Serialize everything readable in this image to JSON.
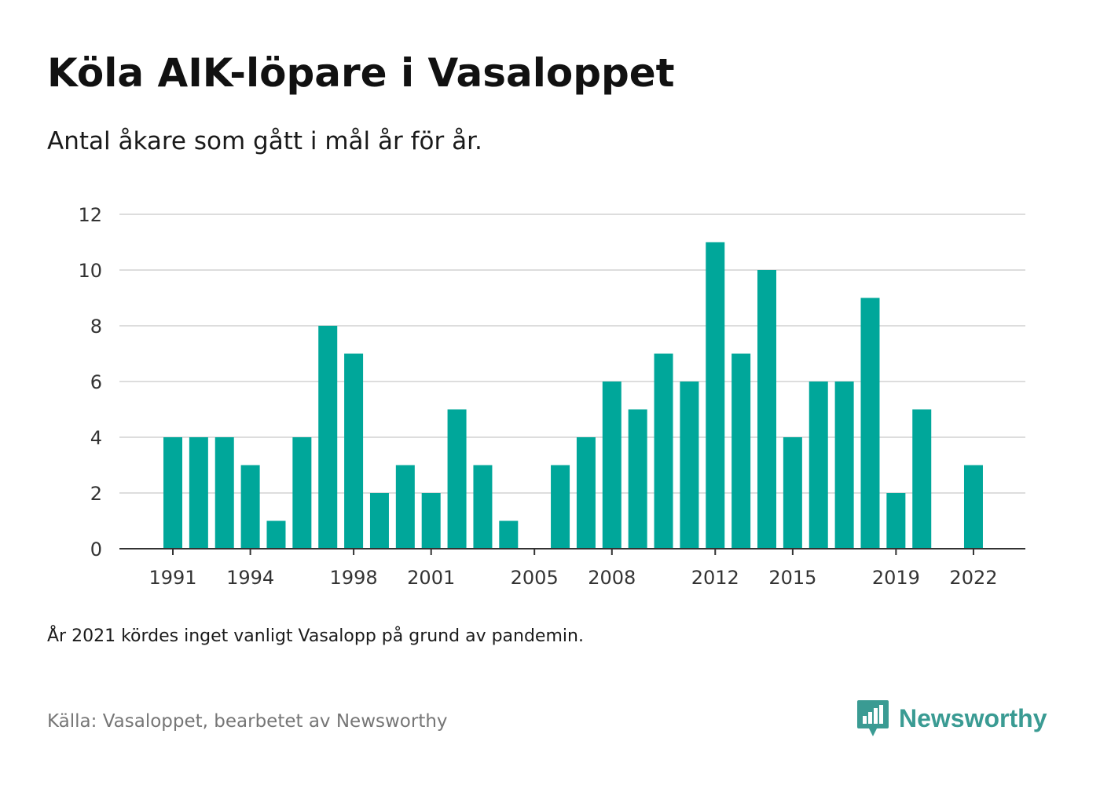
{
  "title": "Köla AIK-löpare i Vasaloppet",
  "subtitle": "Antal åkare som gått i mål år för år.",
  "note": "År 2021 kördes inget vanligt Vasalopp på grund av pandemin.",
  "source": "Källa: Vasaloppet, bearbetet av Newsworthy",
  "logo": {
    "text": "Newsworthy",
    "icon": "bar-chart-speech-bubble-icon",
    "color": "#3a9b93"
  },
  "colors": {
    "bar": "#00a79a",
    "grid": "#dddddd",
    "axis": "#333333"
  },
  "chart_data": {
    "type": "bar",
    "x": [
      1991,
      1992,
      1993,
      1994,
      1995,
      1996,
      1997,
      1998,
      1999,
      2000,
      2001,
      2002,
      2003,
      2004,
      2005,
      2006,
      2007,
      2008,
      2009,
      2010,
      2011,
      2012,
      2013,
      2014,
      2015,
      2016,
      2017,
      2018,
      2019,
      2020,
      2021,
      2022
    ],
    "values": [
      4,
      4,
      4,
      3,
      1,
      4,
      8,
      7,
      2,
      3,
      2,
      5,
      3,
      1,
      0,
      3,
      4,
      6,
      5,
      7,
      6,
      11,
      7,
      10,
      4,
      6,
      6,
      9,
      2,
      5,
      0,
      3
    ],
    "x_tick_labels": [
      "1991",
      "1994",
      "1998",
      "2001",
      "2005",
      "2008",
      "2012",
      "2015",
      "2019",
      "2022"
    ],
    "y_ticks": [
      0,
      2,
      4,
      6,
      8,
      10,
      12
    ],
    "ylim": [
      0,
      12
    ],
    "grid": "horizontal",
    "legend": "none"
  }
}
